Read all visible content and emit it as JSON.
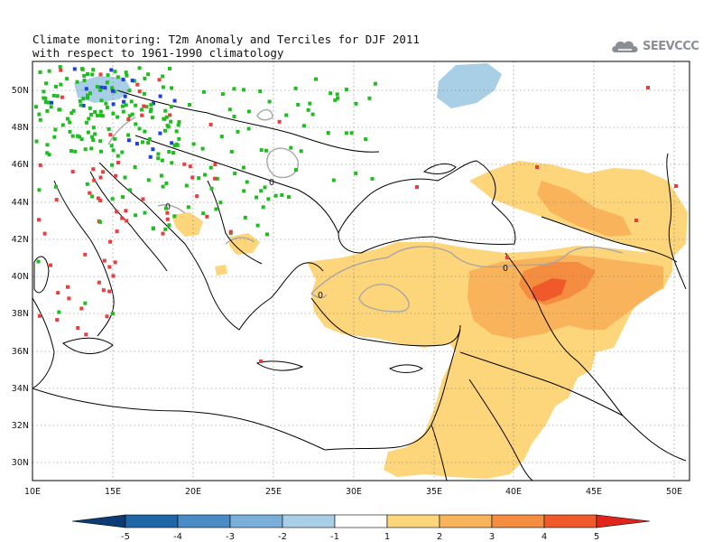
{
  "title": {
    "line1": "Climate monitoring: T2m Anomaly and Terciles for DJF 2011",
    "line2": "with respect to 1961-1990 climatology"
  },
  "logo": {
    "text": "SEEVCCC",
    "icon": "cloud-icon"
  },
  "map": {
    "lon_range": [
      10,
      51
    ],
    "lat_range": [
      29,
      51.5
    ],
    "x_ticks": [
      "10E",
      "15E",
      "20E",
      "25E",
      "30E",
      "35E",
      "40E",
      "45E",
      "50E"
    ],
    "y_ticks": [
      "30N",
      "32N",
      "34N",
      "36N",
      "38N",
      "40N",
      "42N",
      "44N",
      "46N",
      "48N",
      "50N"
    ],
    "contour_label": "0",
    "grid": "dotted"
  },
  "colorbar": {
    "labels": [
      "-5",
      "-4",
      "-3",
      "-2",
      "-1",
      "1",
      "2",
      "3",
      "4",
      "5"
    ],
    "colors": [
      "#0d3b73",
      "#1f66a8",
      "#4a8cc6",
      "#79afd9",
      "#a9cfe6",
      "#ffffff",
      "#fdd57a",
      "#f9b35a",
      "#f58d40",
      "#f05a2a",
      "#e0261c"
    ]
  },
  "legend_colors": {
    "above_tercile": "#ee3b3b",
    "normal_tercile": "#1fbd1f",
    "below_tercile": "#1f3fe0"
  }
}
